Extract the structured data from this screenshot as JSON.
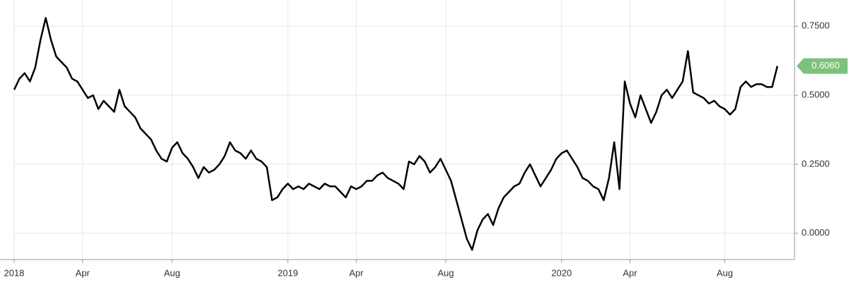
{
  "chart_data": {
    "type": "line",
    "categories": [
      "2018",
      null,
      null,
      null,
      null,
      null,
      null,
      null,
      null,
      null,
      null,
      null,
      null,
      "Apr",
      null,
      null,
      null,
      null,
      null,
      null,
      null,
      null,
      null,
      null,
      null,
      null,
      null,
      null,
      null,
      null,
      "Aug",
      null,
      null,
      null,
      null,
      null,
      null,
      null,
      null,
      null,
      null,
      null,
      null,
      null,
      null,
      null,
      null,
      null,
      null,
      null,
      null,
      null,
      "2019",
      null,
      null,
      null,
      null,
      null,
      null,
      null,
      null,
      null,
      null,
      null,
      null,
      "Apr",
      null,
      null,
      null,
      null,
      null,
      null,
      null,
      null,
      null,
      null,
      null,
      null,
      null,
      null,
      null,
      null,
      "Aug",
      null,
      null,
      null,
      null,
      null,
      null,
      null,
      null,
      null,
      null,
      null,
      null,
      null,
      null,
      null,
      null,
      null,
      null,
      null,
      null,
      null,
      "2020",
      null,
      null,
      null,
      null,
      null,
      null,
      null,
      null,
      null,
      null,
      null,
      null,
      "Apr",
      null,
      null,
      null,
      null,
      null,
      null,
      null,
      null,
      null,
      null,
      null,
      null,
      null,
      null,
      null,
      null,
      null,
      "Aug",
      null,
      null,
      null,
      null,
      null,
      null,
      null,
      null,
      null,
      null
    ],
    "series": [
      {
        "color": "#000000",
        "values": [
          0.52,
          0.56,
          0.58,
          0.55,
          0.6,
          0.7,
          0.78,
          0.7,
          0.64,
          0.62,
          0.6,
          0.56,
          0.55,
          0.52,
          0.49,
          0.5,
          0.45,
          0.48,
          0.46,
          0.44,
          0.52,
          0.46,
          0.44,
          0.42,
          0.38,
          0.36,
          0.34,
          0.3,
          0.27,
          0.26,
          0.31,
          0.33,
          0.29,
          0.27,
          0.24,
          0.2,
          0.24,
          0.22,
          0.23,
          0.25,
          0.28,
          0.33,
          0.3,
          0.29,
          0.27,
          0.3,
          0.27,
          0.26,
          0.24,
          0.12,
          0.13,
          0.16,
          0.18,
          0.16,
          0.17,
          0.16,
          0.18,
          0.17,
          0.16,
          0.18,
          0.17,
          0.17,
          0.15,
          0.13,
          0.17,
          0.16,
          0.17,
          0.19,
          0.19,
          0.21,
          0.22,
          0.2,
          0.19,
          0.18,
          0.16,
          0.26,
          0.25,
          0.28,
          0.26,
          0.22,
          0.24,
          0.27,
          0.23,
          0.19,
          0.12,
          0.05,
          -0.02,
          -0.06,
          0.01,
          0.05,
          0.07,
          0.03,
          0.09,
          0.13,
          0.15,
          0.17,
          0.18,
          0.22,
          0.25,
          0.21,
          0.17,
          0.2,
          0.23,
          0.27,
          0.29,
          0.3,
          0.27,
          0.24,
          0.2,
          0.19,
          0.17,
          0.16,
          0.12,
          0.2,
          0.33,
          0.16,
          0.55,
          0.47,
          0.42,
          0.5,
          0.45,
          0.4,
          0.44,
          0.5,
          0.52,
          0.49,
          0.52,
          0.55,
          0.66,
          0.51,
          0.5,
          0.49,
          0.47,
          0.48,
          0.46,
          0.45,
          0.43,
          0.45,
          0.53,
          0.55,
          0.53,
          0.54,
          0.54,
          0.53,
          0.53,
          0.606
        ],
        "value_labels": [
          null,
          null,
          null,
          null,
          null,
          null,
          null,
          null,
          null,
          null,
          null,
          null,
          null,
          null,
          null,
          null,
          null,
          null,
          null,
          null,
          null,
          null,
          null,
          null,
          null,
          null,
          null,
          null,
          null,
          null,
          null,
          null,
          null,
          null,
          null,
          null,
          null,
          null,
          null,
          null,
          null,
          null,
          null,
          null,
          null,
          null,
          null,
          null,
          null,
          null,
          null,
          null,
          null,
          null,
          null,
          null,
          null,
          null,
          null,
          null,
          null,
          null,
          null,
          null,
          null,
          null,
          null,
          null,
          null,
          null,
          null,
          null,
          null,
          null,
          null,
          null,
          null,
          null,
          null,
          null,
          null,
          null,
          null,
          null,
          null,
          null,
          null,
          null,
          null,
          null,
          null,
          null,
          null,
          null,
          null,
          null,
          null,
          null,
          null,
          null,
          null,
          null,
          null,
          null,
          null,
          null,
          null,
          null,
          null,
          null,
          null,
          null,
          null,
          null,
          null,
          null,
          null,
          null,
          null,
          null,
          null,
          null,
          null,
          null,
          null,
          null,
          null,
          null,
          null,
          null,
          null,
          null,
          null,
          null,
          null,
          null,
          null,
          null,
          null,
          null,
          null,
          null,
          null,
          null,
          null,
          "0.6060"
        ],
        "label_color": "#7cc27a"
      }
    ],
    "ylim": [
      -0.095,
      0.845
    ],
    "yticks": [
      {
        "value": 0,
        "label": "0.0000"
      },
      {
        "value": 0.25,
        "label": "0.2500"
      },
      {
        "value": 0.5,
        "label": "0.5000"
      },
      {
        "value": 0.75,
        "label": "0.7500"
      }
    ],
    "grid": true
  }
}
